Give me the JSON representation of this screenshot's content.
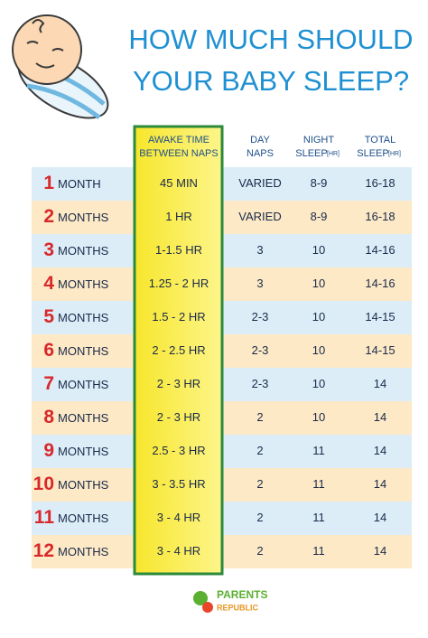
{
  "title": {
    "line1": "HOW MUCH SHOULD",
    "line2": "YOUR BABY SLEEP?"
  },
  "table": {
    "headers": {
      "awake": {
        "line1": "AWAKE TIME",
        "line2": "BETWEEN NAPS"
      },
      "naps": {
        "line1": "DAY",
        "line2": "NAPS"
      },
      "night": {
        "line1": "NIGHT",
        "line2": "SLEEP",
        "unit": "[HR]"
      },
      "total": {
        "line1": "TOTAL",
        "line2": "SLEEP",
        "unit": "[HR]"
      }
    },
    "rows": [
      {
        "month": 1,
        "unit": "MONTH",
        "awake": "45 MIN",
        "naps": "VARIED",
        "night": "8-9",
        "total": "16-18"
      },
      {
        "month": 2,
        "unit": "MONTHS",
        "awake": "1 HR",
        "naps": "VARIED",
        "night": "8-9",
        "total": "16-18"
      },
      {
        "month": 3,
        "unit": "MONTHS",
        "awake": "1-1.5 HR",
        "naps": "3",
        "night": "10",
        "total": "14-16"
      },
      {
        "month": 4,
        "unit": "MONTHS",
        "awake": "1.25 - 2 HR",
        "naps": "3",
        "night": "10",
        "total": "14-16"
      },
      {
        "month": 5,
        "unit": "MONTHS",
        "awake": "1.5 - 2 HR",
        "naps": "2-3",
        "night": "10",
        "total": "14-15"
      },
      {
        "month": 6,
        "unit": "MONTHS",
        "awake": "2 - 2.5 HR",
        "naps": "2-3",
        "night": "10",
        "total": "14-15"
      },
      {
        "month": 7,
        "unit": "MONTHS",
        "awake": "2 - 3 HR",
        "naps": "2-3",
        "night": "10",
        "total": "14"
      },
      {
        "month": 8,
        "unit": "MONTHS",
        "awake": "2 - 3 HR",
        "naps": "2",
        "night": "10",
        "total": "14"
      },
      {
        "month": 9,
        "unit": "MONTHS",
        "awake": "2.5 - 3 HR",
        "naps": "2",
        "night": "11",
        "total": "14"
      },
      {
        "month": 10,
        "unit": "MONTHS",
        "awake": "3 - 3.5 HR",
        "naps": "2",
        "night": "11",
        "total": "14"
      },
      {
        "month": 11,
        "unit": "MONTHS",
        "awake": "3 - 4 HR",
        "naps": "2",
        "night": "11",
        "total": "14"
      },
      {
        "month": 12,
        "unit": "MONTHS",
        "awake": "3 - 4 HR",
        "naps": "2",
        "night": "11",
        "total": "14"
      }
    ]
  },
  "footer": {
    "brand1": "PARENTS",
    "brand2": "REPUBLIC"
  }
}
